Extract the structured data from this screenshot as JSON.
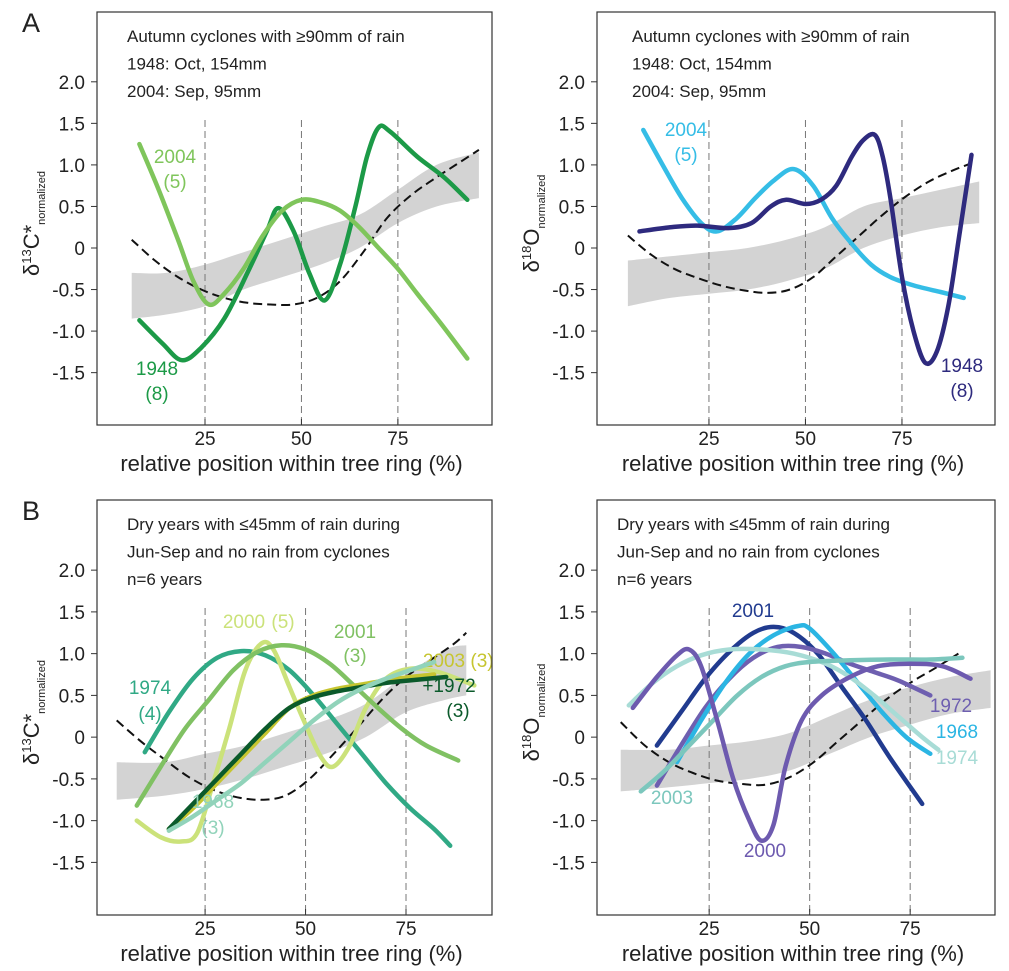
{
  "chart_data": [
    {
      "type": "line",
      "panel": "A",
      "annotation": [
        "Autumn cyclones with ≥90mm of rain",
        "1948: Oct, 154mm",
        "2004: Sep, 95mm"
      ],
      "ylabel": {
        "symbol": "δ",
        "sup": "13",
        "main": "C*",
        "sub": "normalized"
      },
      "xlabel": "relative position within tree ring (%)",
      "xlim": [
        -3,
        99.4
      ],
      "ylim": [
        -2.13,
        2.84
      ],
      "xticks": [
        25,
        50,
        75
      ],
      "yticks": [
        {
          "value": 2,
          "label": "2.0"
        },
        1.5,
        {
          "value": 1,
          "label": "1.0"
        },
        0.5,
        0,
        -0.5,
        {
          "value": -1,
          "label": "-1.0"
        },
        -1.5
      ],
      "grid": true,
      "band": {
        "color": "#d3d3d3",
        "x": [
          6,
          15,
          25,
          35,
          45,
          55,
          65,
          75,
          85,
          96
        ],
        "lower": [
          -0.85,
          -0.8,
          -0.7,
          -0.5,
          -0.35,
          -0.2,
          0.0,
          0.3,
          0.5,
          0.6
        ],
        "upper": [
          -0.3,
          -0.3,
          -0.2,
          -0.05,
          0.1,
          0.25,
          0.4,
          0.7,
          1.0,
          1.15
        ]
      },
      "reference": {
        "color": "#111111",
        "x": [
          6,
          12,
          18,
          24,
          30,
          36,
          42,
          48,
          54,
          60,
          66,
          72,
          78,
          84,
          90,
          96
        ],
        "values": [
          0.1,
          -0.15,
          -0.35,
          -0.5,
          -0.6,
          -0.66,
          -0.68,
          -0.68,
          -0.6,
          -0.4,
          -0.05,
          0.35,
          0.62,
          0.82,
          1.0,
          1.18
        ]
      },
      "series": [
        {
          "name": "1948",
          "note": "(8)",
          "color": "#1c9a47",
          "x": [
            8,
            14,
            19,
            24,
            30,
            36,
            41,
            44,
            48,
            52,
            56,
            60,
            64,
            67,
            70,
            73,
            80,
            87,
            93
          ],
          "values": [
            -0.87,
            -1.15,
            -1.35,
            -1.2,
            -0.85,
            -0.3,
            0.2,
            0.48,
            0.2,
            -0.3,
            -0.63,
            -0.2,
            0.5,
            1.1,
            1.45,
            1.4,
            1.1,
            0.85,
            0.58
          ]
        },
        {
          "name": "2004",
          "note": "(5)",
          "color": "#7fc55b",
          "x": [
            8,
            13,
            18,
            22,
            26,
            30,
            35,
            40,
            45,
            50,
            55,
            60,
            65,
            70,
            75,
            80,
            86,
            93
          ],
          "values": [
            1.25,
            0.7,
            0.1,
            -0.4,
            -0.68,
            -0.55,
            -0.25,
            0.15,
            0.45,
            0.58,
            0.55,
            0.45,
            0.25,
            0.0,
            -0.25,
            -0.55,
            -0.9,
            -1.33
          ]
        }
      ]
    },
    {
      "type": "line",
      "annotation": [
        "Autumn cyclones with ≥90mm of rain",
        "1948: Oct, 154mm",
        "2004: Sep, 95mm"
      ],
      "ylabel": {
        "symbol": "δ",
        "sup": "18",
        "main": "O",
        "sub": "normalized"
      },
      "xlabel": "relative position within tree ring (%)",
      "xlim": [
        -4,
        99.1
      ],
      "ylim": [
        -2.13,
        2.84
      ],
      "xticks": [
        25,
        50,
        75
      ],
      "yticks": [
        {
          "value": 2,
          "label": "2.0"
        },
        1.5,
        {
          "value": 1,
          "label": "1.0"
        },
        0.5,
        0,
        -0.5,
        {
          "value": -1,
          "label": "-1.0"
        },
        -1.5
      ],
      "grid": true,
      "band": {
        "color": "#d3d3d3",
        "x": [
          4,
          15,
          25,
          35,
          45,
          55,
          65,
          75,
          85,
          95
        ],
        "lower": [
          -0.7,
          -0.6,
          -0.55,
          -0.5,
          -0.4,
          -0.25,
          0.0,
          0.15,
          0.25,
          0.3
        ],
        "upper": [
          -0.15,
          -0.1,
          -0.05,
          0.0,
          0.1,
          0.25,
          0.5,
          0.6,
          0.7,
          0.8
        ]
      },
      "reference": {
        "color": "#111111",
        "x": [
          4,
          10,
          16,
          22,
          28,
          34,
          40,
          46,
          52,
          58,
          64,
          70,
          76,
          82,
          88,
          93
        ],
        "values": [
          0.15,
          -0.08,
          -0.25,
          -0.36,
          -0.45,
          -0.51,
          -0.54,
          -0.5,
          -0.35,
          -0.1,
          0.15,
          0.4,
          0.62,
          0.8,
          0.93,
          1.02
        ]
      },
      "series": [
        {
          "name": "2004",
          "note": "(5)",
          "color": "#35bde6",
          "x": [
            8,
            13,
            18,
            23,
            27,
            32,
            37,
            42,
            47,
            52,
            57,
            62,
            67,
            72,
            78,
            85,
            91
          ],
          "values": [
            1.42,
            1.0,
            0.6,
            0.3,
            0.2,
            0.35,
            0.6,
            0.82,
            0.95,
            0.75,
            0.35,
            0.05,
            -0.2,
            -0.35,
            -0.45,
            -0.53,
            -0.6
          ]
        },
        {
          "name": "1948",
          "note": "(8)",
          "color": "#2e2a7e",
          "x": [
            7,
            15,
            22,
            30,
            36,
            41,
            45,
            50,
            54,
            58,
            62,
            65,
            68,
            70,
            72,
            75,
            78,
            81,
            84,
            87,
            90,
            93
          ],
          "values": [
            0.2,
            0.25,
            0.27,
            0.24,
            0.3,
            0.5,
            0.58,
            0.53,
            0.58,
            0.75,
            1.1,
            1.3,
            1.36,
            1.1,
            0.6,
            -0.35,
            -1.0,
            -1.38,
            -1.25,
            -0.7,
            0.2,
            1.12
          ]
        }
      ]
    },
    {
      "type": "line",
      "panel": "B",
      "annotation": [
        "Dry years with ≤45mm of rain during",
        "Jun-Sep and no rain from cyclones",
        "n=6 years"
      ],
      "ylabel": {
        "symbol": "δ",
        "sup": "13",
        "main": "C*",
        "sub": "normalized"
      },
      "xlabel": "relative position within tree ring (%)",
      "xlim": [
        -1.9,
        96.4
      ],
      "ylim": [
        -2.13,
        2.84
      ],
      "xticks": [
        25,
        50,
        75
      ],
      "yticks": [
        {
          "value": 2,
          "label": "2.0"
        },
        1.5,
        {
          "value": 1,
          "label": "1.0"
        },
        0.5,
        0,
        -0.5,
        {
          "value": -1,
          "label": "-1.0"
        },
        -1.5
      ],
      "grid": true,
      "band": {
        "color": "#d3d3d3",
        "x": [
          3,
          15,
          25,
          35,
          45,
          55,
          65,
          75,
          85,
          90
        ],
        "lower": [
          -0.75,
          -0.7,
          -0.62,
          -0.5,
          -0.35,
          -0.2,
          0.0,
          0.3,
          0.45,
          0.5
        ],
        "upper": [
          -0.3,
          -0.3,
          -0.2,
          -0.1,
          0.05,
          0.2,
          0.4,
          0.75,
          1.05,
          1.1
        ]
      },
      "reference": {
        "color": "#111111",
        "x": [
          3,
          9,
          15,
          21,
          27,
          33,
          39,
          45,
          51,
          57,
          63,
          69,
          75,
          81,
          87,
          90
        ],
        "values": [
          0.2,
          -0.05,
          -0.27,
          -0.48,
          -0.63,
          -0.72,
          -0.75,
          -0.7,
          -0.5,
          -0.2,
          0.12,
          0.45,
          0.72,
          0.92,
          1.12,
          1.25
        ]
      },
      "series": [
        {
          "name": "1974",
          "note": "(4)",
          "color": "#30a985",
          "x": [
            10,
            16,
            22,
            28,
            34,
            40,
            46,
            52,
            58,
            64,
            70,
            76,
            82,
            86
          ],
          "values": [
            -0.18,
            0.3,
            0.7,
            0.95,
            1.03,
            0.98,
            0.8,
            0.5,
            0.15,
            -0.2,
            -0.55,
            -0.85,
            -1.1,
            -1.3
          ]
        },
        {
          "name": "2000",
          "note": "(5)",
          "color": "#cbe27a",
          "x": [
            8,
            14,
            19,
            23,
            27,
            31,
            35,
            39,
            42,
            46,
            50,
            54,
            57,
            61,
            65,
            70,
            76,
            83,
            92
          ],
          "values": [
            -1.0,
            -1.2,
            -1.25,
            -1.15,
            -0.55,
            0.1,
            0.8,
            1.12,
            1.05,
            0.6,
            0.15,
            -0.25,
            -0.35,
            -0.1,
            0.35,
            0.7,
            0.82,
            0.78,
            0.62
          ]
        },
        {
          "name": "2001",
          "note": "(3)",
          "color": "#80c163",
          "x": [
            8,
            14,
            20,
            26,
            32,
            38,
            44,
            50,
            56,
            62,
            68,
            74,
            80,
            88
          ],
          "values": [
            -0.82,
            -0.35,
            0.1,
            0.45,
            0.8,
            1.02,
            1.1,
            1.05,
            0.88,
            0.62,
            0.35,
            0.1,
            -0.1,
            -0.28
          ]
        },
        {
          "name": "2003",
          "note": "(3)",
          "color": "#c6c530",
          "x": [
            16,
            22,
            28,
            34,
            40,
            46,
            52,
            58,
            64,
            70,
            76,
            82
          ],
          "values": [
            -1.1,
            -0.85,
            -0.55,
            -0.25,
            0.05,
            0.35,
            0.5,
            0.58,
            0.63,
            0.68,
            0.72,
            0.75
          ]
        },
        {
          "name": "+1972",
          "note": "(3)",
          "color": "#0b5a2b",
          "x": [
            16,
            22,
            28,
            34,
            40,
            46,
            52,
            58,
            64,
            70,
            76,
            85
          ],
          "values": [
            -1.1,
            -0.8,
            -0.5,
            -0.2,
            0.1,
            0.35,
            0.48,
            0.55,
            0.6,
            0.65,
            0.68,
            0.72
          ]
        },
        {
          "name": "1968",
          "note": "(3)",
          "color": "#91d3ba",
          "x": [
            16,
            22,
            28,
            34,
            40,
            46,
            52,
            58,
            64,
            70,
            76,
            82
          ],
          "values": [
            -1.12,
            -0.95,
            -0.75,
            -0.55,
            -0.3,
            -0.05,
            0.2,
            0.42,
            0.58,
            0.7,
            0.8,
            0.9
          ]
        }
      ]
    },
    {
      "type": "line",
      "annotation": [
        "Dry years with ≤45mm of rain during",
        "Jun-Sep and no rain from cyclones",
        "n=6 years"
      ],
      "ylabel": {
        "symbol": "δ",
        "sup": "18",
        "main": "O",
        "sub": "normalized"
      },
      "xlabel": "relative position within tree ring (%)",
      "xlim": [
        -2.9,
        96.1
      ],
      "ylim": [
        -2.13,
        2.84
      ],
      "xticks": [
        25,
        50,
        75
      ],
      "yticks": [
        {
          "value": 2,
          "label": "2.0"
        },
        1.5,
        {
          "value": 1,
          "label": "1.0"
        },
        0.5,
        0,
        -0.5,
        {
          "value": -1,
          "label": "-1.0"
        },
        -1.5
      ],
      "grid": true,
      "band": {
        "color": "#d3d3d3",
        "x": [
          3,
          15,
          25,
          35,
          45,
          55,
          65,
          75,
          85,
          95
        ],
        "lower": [
          -0.65,
          -0.6,
          -0.55,
          -0.5,
          -0.4,
          -0.2,
          0.0,
          0.15,
          0.28,
          0.35
        ],
        "upper": [
          -0.15,
          -0.15,
          -0.1,
          -0.05,
          0.05,
          0.25,
          0.45,
          0.6,
          0.72,
          0.8
        ]
      },
      "reference": {
        "color": "#111111",
        "x": [
          3,
          9,
          15,
          21,
          27,
          33,
          39,
          45,
          51,
          57,
          63,
          69,
          75,
          81,
          87
        ],
        "values": [
          0.18,
          -0.1,
          -0.3,
          -0.43,
          -0.52,
          -0.56,
          -0.57,
          -0.48,
          -0.3,
          -0.05,
          0.2,
          0.45,
          0.65,
          0.82,
          1.0
        ]
      },
      "series": [
        {
          "name": "2001",
          "color": "#213b8f",
          "x": [
            12,
            18,
            24,
            30,
            36,
            41,
            46,
            52,
            58,
            64,
            70,
            78
          ],
          "values": [
            -0.1,
            0.3,
            0.7,
            1.02,
            1.25,
            1.32,
            1.25,
            1.0,
            0.6,
            0.2,
            -0.25,
            -0.8
          ]
        },
        {
          "name": "1972",
          "color": "#6e5fb0",
          "x": [
            12,
            18,
            24,
            30,
            36,
            42,
            48,
            54,
            60,
            66,
            72,
            80
          ],
          "values": [
            -0.58,
            -0.1,
            0.35,
            0.7,
            0.95,
            1.08,
            1.08,
            1.0,
            0.88,
            0.78,
            0.68,
            0.5
          ]
        },
        {
          "name": "1968",
          "color": "#2bb5e3",
          "x": [
            17,
            23,
            29,
            35,
            41,
            47,
            50,
            56,
            62,
            68,
            74,
            80
          ],
          "values": [
            -0.3,
            0.2,
            0.65,
            1.0,
            1.22,
            1.33,
            1.3,
            1.0,
            0.65,
            0.3,
            0.0,
            -0.2
          ]
        },
        {
          "name": "1974",
          "color": "#a8dcd6",
          "x": [
            5,
            11,
            17,
            23,
            30,
            38,
            46,
            54,
            60,
            66,
            72,
            78,
            82
          ],
          "values": [
            0.38,
            0.65,
            0.85,
            0.98,
            1.05,
            1.05,
            1.0,
            0.88,
            0.72,
            0.5,
            0.25,
            0.0,
            -0.15
          ]
        },
        {
          "name": "2003",
          "color": "#7cc7bd",
          "x": [
            8,
            14,
            20,
            26,
            32,
            38,
            44,
            50,
            60,
            70,
            80,
            88
          ],
          "values": [
            -0.65,
            -0.4,
            -0.1,
            0.2,
            0.5,
            0.72,
            0.85,
            0.9,
            0.92,
            0.93,
            0.93,
            0.95
          ]
        },
        {
          "name": "2000",
          "color": "#6d5aaf",
          "x": [
            6,
            12,
            17,
            20,
            23,
            27,
            31,
            35,
            38,
            41,
            44,
            48,
            53,
            60,
            67,
            75,
            83,
            90
          ],
          "values": [
            0.35,
            0.72,
            0.98,
            1.05,
            0.85,
            0.2,
            -0.5,
            -1.0,
            -1.24,
            -1.05,
            -0.35,
            0.2,
            0.5,
            0.72,
            0.85,
            0.88,
            0.85,
            0.7
          ]
        }
      ]
    }
  ]
}
